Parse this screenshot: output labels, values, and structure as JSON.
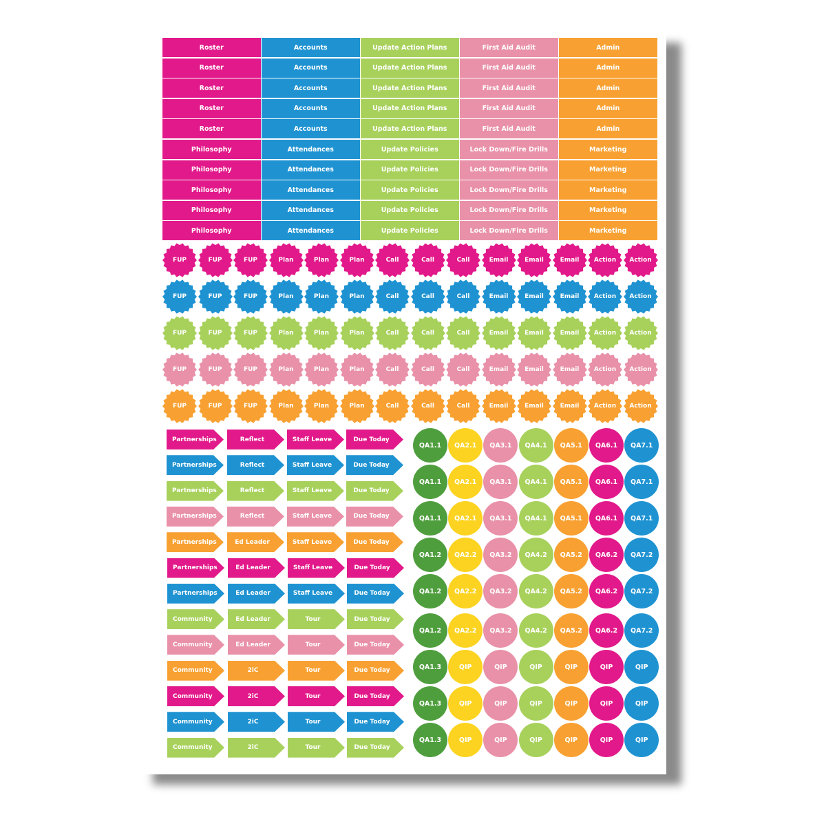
{
  "colors": {
    "pink": "#E2198A",
    "blue": "#1F93D2",
    "green": "#A8D15C",
    "light_pink": "#E991A9",
    "orange": "#F8A132",
    "dark_green": "#4F9E3E",
    "yellow": "#FCD320"
  },
  "table": {
    "column_colors": [
      "pink",
      "blue",
      "green",
      "light_pink",
      "orange"
    ],
    "rows": [
      [
        "Roster",
        "Accounts",
        "Update Action Plans",
        "First Aid Audit",
        "Admin"
      ],
      [
        "Roster",
        "Accounts",
        "Update Action Plans",
        "First Aid Audit",
        "Admin"
      ],
      [
        "Roster",
        "Accounts",
        "Update Action Plans",
        "First Aid Audit",
        "Admin"
      ],
      [
        "Roster",
        "Accounts",
        "Update Action Plans",
        "First Aid Audit",
        "Admin"
      ],
      [
        "Roster",
        "Accounts",
        "Update Action Plans",
        "First Aid Audit",
        "Admin"
      ],
      [
        "Philosophy",
        "Attendances",
        "Update Policies",
        "Lock Down/Fire Drills",
        "Marketing"
      ],
      [
        "Philosophy",
        "Attendances",
        "Update Policies",
        "Lock Down/Fire Drills",
        "Marketing"
      ],
      [
        "Philosophy",
        "Attendances",
        "Update Policies",
        "Lock Down/Fire Drills",
        "Marketing"
      ],
      [
        "Philosophy",
        "Attendances",
        "Update Policies",
        "Lock Down/Fire Drills",
        "Marketing"
      ],
      [
        "Philosophy",
        "Attendances",
        "Update Policies",
        "Lock Down/Fire Drills",
        "Marketing"
      ]
    ]
  },
  "badges": {
    "row_colors": [
      "pink",
      "blue",
      "green",
      "light_pink",
      "orange"
    ],
    "labels": [
      "FUP",
      "FUP",
      "FUP",
      "Plan",
      "Plan",
      "Plan",
      "Call",
      "Call",
      "Call",
      "Email",
      "Email",
      "Email",
      "Action",
      "Action"
    ]
  },
  "arrows": {
    "row_colors": [
      "pink",
      "blue",
      "green",
      "light_pink",
      "orange",
      "pink",
      "blue",
      "green",
      "light_pink",
      "orange",
      "pink",
      "blue",
      "green"
    ],
    "rows": [
      [
        "Partnerships",
        "Reflect",
        "Staff Leave",
        "Due Today"
      ],
      [
        "Partnerships",
        "Reflect",
        "Staff Leave",
        "Due Today"
      ],
      [
        "Partnerships",
        "Reflect",
        "Staff Leave",
        "Due Today"
      ],
      [
        "Partnerships",
        "Reflect",
        "Staff Leave",
        "Due Today"
      ],
      [
        "Partnerships",
        "Ed Leader",
        "Staff Leave",
        "Due Today"
      ],
      [
        "Partnerships",
        "Ed Leader",
        "Staff Leave",
        "Due Today"
      ],
      [
        "Partnerships",
        "Ed Leader",
        "Staff Leave",
        "Due Today"
      ],
      [
        "Community",
        "Ed Leader",
        "Tour",
        "Due Today"
      ],
      [
        "Community",
        "Ed Leader",
        "Tour",
        "Due Today"
      ],
      [
        "Community",
        "2iC",
        "Tour",
        "Due Today"
      ],
      [
        "Community",
        "2iC",
        "Tour",
        "Due Today"
      ],
      [
        "Community",
        "2iC",
        "Tour",
        "Due Today"
      ],
      [
        "Community",
        "2iC",
        "Tour",
        "Due Today"
      ]
    ]
  },
  "circles": {
    "column_colors": [
      "dark_green",
      "yellow",
      "light_pink",
      "green",
      "orange",
      "pink",
      "blue"
    ],
    "rows": [
      [
        "QA1.1",
        "QA2.1",
        "QA3.1",
        "QA4.1",
        "QA5.1",
        "QA6.1",
        "QA7.1"
      ],
      [
        "QA1.1",
        "QA2.1",
        "QA3.1",
        "QA4.1",
        "QA5.1",
        "QA6.1",
        "QA7.1"
      ],
      [
        "QA1.1",
        "QA2.1",
        "QA3.1",
        "QA4.1",
        "QA5.1",
        "QA6.1",
        "QA7.1"
      ],
      [
        "QA1.2",
        "QA2.2",
        "QA3.2",
        "QA4.2",
        "QA5.2",
        "QA6.2",
        "QA7.2"
      ],
      [
        "QA1.2",
        "QA2.2",
        "QA3.2",
        "QA4.2",
        "QA5.2",
        "QA6.2",
        "QA7.2"
      ],
      [
        "QA1.2",
        "QA2.2",
        "QA3.2",
        "QA4.2",
        "QA5.2",
        "QA6.2",
        "QA7.2"
      ],
      [
        "QA1.3",
        "QIP",
        "QIP",
        "QIP",
        "QIP",
        "QIP",
        "QIP"
      ],
      [
        "QA1.3",
        "QIP",
        "QIP",
        "QIP",
        "QIP",
        "QIP",
        "QIP"
      ],
      [
        "QA1.3",
        "QIP",
        "QIP",
        "QIP",
        "QIP",
        "QIP",
        "QIP"
      ]
    ]
  }
}
